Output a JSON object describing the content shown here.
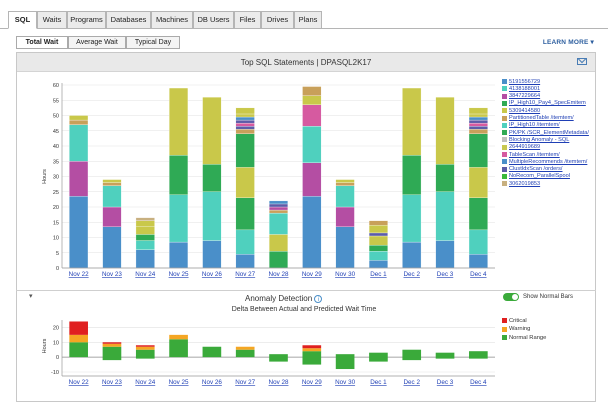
{
  "tabs": [
    "SQL",
    "Waits",
    "Programs",
    "Databases",
    "Machines",
    "DB Users",
    "Files",
    "Drives",
    "Plans"
  ],
  "subtabs": [
    "Total Wait",
    "Average Wait",
    "Typical Day"
  ],
  "learn_more": "LEARN MORE",
  "learn_more_arrow": "▾",
  "top_chart": {
    "title": "Top SQL Statements",
    "separator": "|",
    "instance": "DPASQL2K17"
  },
  "anomaly": {
    "title": "Anomaly Detection",
    "info": "i",
    "toggle_label": "Show Normal Bars",
    "subtitle": "Delta Between Actual and Predicted Wait Time",
    "collapse_arrow": "▾"
  },
  "legend": [
    {
      "label": "5191556729",
      "color": "#4a8fc9"
    },
    {
      "label": "4138188001",
      "color": "#4fd0be"
    },
    {
      "label": "3847229664",
      "color": "#b44ea3"
    },
    {
      "label": "IP_High10_Pay4_SpecEmitem",
      "color": "#2faa55"
    },
    {
      "label": "5309414580",
      "color": "#c9c84a"
    },
    {
      "label": "PartitionedTable /itemtem/",
      "color": "#c8a05a"
    },
    {
      "label": "IP_High10 /itemtem/",
      "color": "#4fd0be"
    },
    {
      "label": "PK/PK /SCR_ElementMetadata/",
      "color": "#2faa55"
    },
    {
      "label": "Blocking Anomaly - SQL",
      "color": "#c0c0c0"
    },
    {
      "label": "2644919689",
      "color": "#c8c850"
    },
    {
      "label": "TableScan /itemtem/",
      "color": "#d65aa0"
    },
    {
      "label": "MultipleRecommends /itemtem/",
      "color": "#4a8fc9"
    },
    {
      "label": "ClustIdxScan /orders/",
      "color": "#5c5ca8"
    },
    {
      "label": "NoRecom_ParallelSpool",
      "color": "#3ab83a"
    },
    {
      "label": "3062019853",
      "color": "#c8b080"
    }
  ],
  "anomaly_legend": [
    {
      "label": "Critical",
      "color": "#e02020"
    },
    {
      "label": "Warning",
      "color": "#f5a623"
    },
    {
      "label": "Normal Range",
      "color": "#3aaa3a"
    }
  ],
  "chart_data": [
    {
      "type": "bar",
      "stacked": true,
      "ylabel": "Hours",
      "ylim": [
        0,
        60
      ],
      "yticks": [
        0,
        5,
        10,
        15,
        20,
        25,
        30,
        35,
        40,
        45,
        50,
        55,
        60
      ],
      "categories": [
        "Nov 22",
        "Nov 23",
        "Nov 24",
        "Nov 25",
        "Nov 26",
        "Nov 27",
        "Nov 28",
        "Nov 29",
        "Nov 30",
        "Dec 1",
        "Dec 2",
        "Dec 3",
        "Dec 4"
      ],
      "segments": [
        [
          [
            23.5,
            "#4a8fc9"
          ],
          [
            11.5,
            "#b44ea3"
          ],
          [
            12,
            "#4fd0be"
          ],
          [
            1.5,
            "#c8a05a"
          ],
          [
            1.5,
            "#c9c84a"
          ]
        ],
        [
          [
            13.5,
            "#4a8fc9"
          ],
          [
            6.5,
            "#b44ea3"
          ],
          [
            7,
            "#4fd0be"
          ],
          [
            1,
            "#c8a05a"
          ],
          [
            1,
            "#c9c84a"
          ]
        ],
        [
          [
            6,
            "#4a8fc9"
          ],
          [
            3,
            "#4fd0be"
          ],
          [
            2,
            "#2faa55"
          ],
          [
            2.5,
            "#c9c84a"
          ],
          [
            2,
            "#c9c84a"
          ],
          [
            1,
            "#c8b080"
          ]
        ],
        [
          [
            8.5,
            "#4a8fc9"
          ],
          [
            15.5,
            "#4fd0be"
          ],
          [
            13,
            "#2faa55"
          ],
          [
            22,
            "#c9c84a"
          ]
        ],
        [
          [
            9,
            "#4a8fc9"
          ],
          [
            16,
            "#4fd0be"
          ],
          [
            9,
            "#2faa55"
          ],
          [
            22,
            "#c9c84a"
          ]
        ],
        [
          [
            4.5,
            "#4a8fc9"
          ],
          [
            8,
            "#4fd0be"
          ],
          [
            10.5,
            "#2faa55"
          ],
          [
            10,
            "#c9c84a"
          ],
          [
            11,
            "#2faa55"
          ],
          [
            1.5,
            "#c8a05a"
          ],
          [
            1,
            "#5c5ca8"
          ],
          [
            1,
            "#d65aa0"
          ],
          [
            1,
            "#5c5ca8"
          ],
          [
            1,
            "#4a8fc9"
          ],
          [
            1,
            "#c9c84a"
          ],
          [
            2,
            "#c9c84a"
          ]
        ],
        [
          [
            5.5,
            "#2faa55"
          ],
          [
            5.5,
            "#c9c84a"
          ],
          [
            7,
            "#4fd0be"
          ],
          [
            1,
            "#c8a05a"
          ],
          [
            1,
            "#b44ea3"
          ],
          [
            1,
            "#5c5ca8"
          ],
          [
            1,
            "#4a8fc9"
          ]
        ],
        [
          [
            23.5,
            "#4a8fc9"
          ],
          [
            11,
            "#b44ea3"
          ],
          [
            12,
            "#4fd0be"
          ],
          [
            7,
            "#d65aa0"
          ],
          [
            3,
            "#c9c84a"
          ],
          [
            3,
            "#c8a05a"
          ]
        ],
        [
          [
            13.5,
            "#4a8fc9"
          ],
          [
            6.5,
            "#b44ea3"
          ],
          [
            7,
            "#4fd0be"
          ],
          [
            1,
            "#c8a05a"
          ],
          [
            1,
            "#c9c84a"
          ]
        ],
        [
          [
            2.5,
            "#4a8fc9"
          ],
          [
            3,
            "#4fd0be"
          ],
          [
            2,
            "#2faa55"
          ],
          [
            3,
            "#c9c84a"
          ],
          [
            1,
            "#5c5ca8"
          ],
          [
            2.5,
            "#c9c84a"
          ],
          [
            1.5,
            "#c8a05a"
          ]
        ],
        [
          [
            8.5,
            "#4a8fc9"
          ],
          [
            15.5,
            "#4fd0be"
          ],
          [
            13,
            "#2faa55"
          ],
          [
            22,
            "#c9c84a"
          ]
        ],
        [
          [
            9,
            "#4a8fc9"
          ],
          [
            16,
            "#4fd0be"
          ],
          [
            9,
            "#2faa55"
          ],
          [
            22,
            "#c9c84a"
          ]
        ],
        [
          [
            4.5,
            "#4a8fc9"
          ],
          [
            8,
            "#4fd0be"
          ],
          [
            10.5,
            "#2faa55"
          ],
          [
            10,
            "#c9c84a"
          ],
          [
            11,
            "#2faa55"
          ],
          [
            1.5,
            "#c8a05a"
          ],
          [
            1,
            "#5c5ca8"
          ],
          [
            1,
            "#d65aa0"
          ],
          [
            1,
            "#5c5ca8"
          ],
          [
            1,
            "#4a8fc9"
          ],
          [
            1,
            "#c9c84a"
          ],
          [
            2,
            "#c9c84a"
          ]
        ]
      ]
    },
    {
      "type": "bar",
      "ylabel": "Hours",
      "ylim": [
        -10,
        25
      ],
      "yticks": [
        -10,
        0,
        10,
        20
      ],
      "categories": [
        "Nov 22",
        "Nov 23",
        "Nov 24",
        "Nov 25",
        "Nov 26",
        "Nov 27",
        "Nov 28",
        "Nov 29",
        "Nov 30",
        "Dec 1",
        "Dec 2",
        "Dec 3",
        "Dec 4"
      ],
      "bars": [
        [
          [
            0,
            10,
            "#3aaa3a"
          ],
          [
            10,
            15,
            "#f5a623"
          ],
          [
            15,
            24,
            "#e02020"
          ]
        ],
        [
          [
            -2,
            7,
            "#3aaa3a"
          ],
          [
            7,
            9,
            "#f5a623"
          ],
          [
            9,
            10,
            "#e02020"
          ]
        ],
        [
          [
            -1,
            5,
            "#3aaa3a"
          ],
          [
            5,
            7,
            "#f5a623"
          ],
          [
            7,
            8,
            "#e02020"
          ]
        ],
        [
          [
            0,
            12,
            "#3aaa3a"
          ],
          [
            12,
            15,
            "#f5a623"
          ]
        ],
        [
          [
            0,
            7,
            "#3aaa3a"
          ]
        ],
        [
          [
            0,
            5,
            "#3aaa3a"
          ],
          [
            5,
            7,
            "#f5a623"
          ]
        ],
        [
          [
            -3,
            2,
            "#3aaa3a"
          ]
        ],
        [
          [
            -5,
            4,
            "#3aaa3a"
          ],
          [
            4,
            6,
            "#f5a623"
          ],
          [
            6,
            8,
            "#e02020"
          ]
        ],
        [
          [
            -8,
            2,
            "#3aaa3a"
          ]
        ],
        [
          [
            -3,
            3,
            "#3aaa3a"
          ]
        ],
        [
          [
            -2,
            5,
            "#3aaa3a"
          ]
        ],
        [
          [
            -1,
            3,
            "#3aaa3a"
          ]
        ],
        [
          [
            -1,
            4,
            "#3aaa3a"
          ]
        ]
      ]
    }
  ]
}
